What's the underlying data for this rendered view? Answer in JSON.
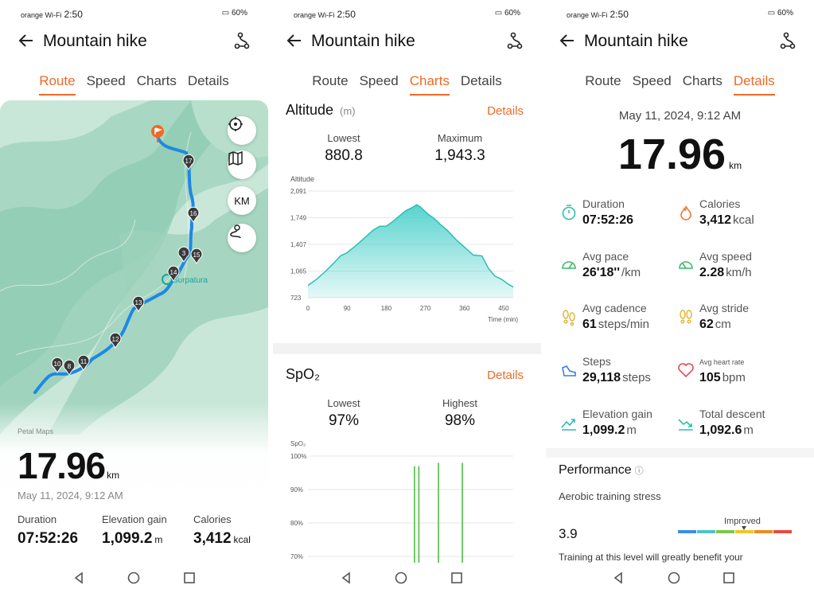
{
  "status": {
    "carrier": "orange Wi-Fi",
    "time": "2:50",
    "battery": "60%"
  },
  "header": {
    "title": "Mountain hike"
  },
  "tabs": [
    "Route",
    "Speed",
    "Charts",
    "Details"
  ],
  "route_panel": {
    "map_buttons": [
      "locate-icon",
      "map-layers-icon",
      "KM",
      "track-icon"
    ],
    "waypoints": [
      "17",
      "16",
      "3",
      "15",
      "14",
      "13",
      "12",
      "11",
      "10",
      "8"
    ],
    "place_label": "Surpatura",
    "map_provider": "Petal Maps",
    "distance": "17.96",
    "distance_unit": "km",
    "date": "May 11, 2024, 9:12 AM",
    "stats": [
      {
        "label": "Duration",
        "value": "07:52:26",
        "unit": ""
      },
      {
        "label": "Elevation gain",
        "value": "1,099.2",
        "unit": "m"
      },
      {
        "label": "Calories",
        "value": "3,412",
        "unit": "kcal"
      }
    ]
  },
  "charts_panel": {
    "altitude": {
      "title": "Altitude",
      "unit": "(m)",
      "details_label": "Details",
      "lowest_label": "Lowest",
      "lowest_value": "880.8",
      "max_label": "Maximum",
      "max_value": "1,943.3"
    },
    "spo2": {
      "title": "SpO₂",
      "details_label": "Details",
      "lowest_label": "Lowest",
      "lowest_value": "97%",
      "highest_label": "Highest",
      "highest_value": "98%"
    }
  },
  "chart_data": [
    {
      "type": "area",
      "ylabel": "Altitude",
      "xlabel": "Time (min)",
      "yticks": [
        "2,091",
        "1,749",
        "1,407",
        "1,065",
        "723"
      ],
      "ytick_values": [
        2091,
        1749,
        1407,
        1065,
        723
      ],
      "xticks": [
        "0",
        "90",
        "180",
        "270",
        "360",
        "450"
      ],
      "xtick_values": [
        0,
        90,
        180,
        270,
        360,
        450
      ],
      "ylim": [
        723,
        2091
      ],
      "xlim": [
        0,
        472
      ],
      "x": [
        0,
        20,
        40,
        60,
        75,
        90,
        110,
        130,
        150,
        165,
        180,
        195,
        210,
        225,
        240,
        250,
        260,
        275,
        290,
        305,
        320,
        340,
        360,
        380,
        400,
        415,
        430,
        445,
        460,
        472
      ],
      "y": [
        880,
        960,
        1060,
        1170,
        1260,
        1300,
        1390,
        1490,
        1590,
        1640,
        1640,
        1700,
        1770,
        1840,
        1880,
        1915,
        1880,
        1800,
        1740,
        1660,
        1590,
        1470,
        1370,
        1270,
        1260,
        1100,
        1000,
        960,
        900,
        860
      ],
      "fill": "#4fd1cc",
      "stroke": "#2cbdb7"
    },
    {
      "type": "bar",
      "ylabel": "SpO₂",
      "yticks": [
        "100%",
        "90%",
        "80%",
        "70%"
      ],
      "ytick_values": [
        100,
        90,
        80,
        70
      ],
      "ylim": [
        70,
        100
      ],
      "xlim": [
        0,
        472
      ],
      "x": [
        245,
        255,
        300,
        355
      ],
      "values": [
        97,
        97,
        98,
        98
      ],
      "color": "#4fbd4a"
    }
  ],
  "details_panel": {
    "date": "May 11, 2024, 9:12 AM",
    "distance": "17.96",
    "distance_unit": "km",
    "metrics": [
      {
        "label": "Duration",
        "value": "07:52:26",
        "unit": "",
        "icon": "timer-icon"
      },
      {
        "label": "Calories",
        "value": "3,412",
        "unit": "kcal",
        "icon": "flame-icon"
      },
      {
        "label": "Avg pace",
        "value": "26'18''",
        "unit": "/km",
        "icon": "pace-gauge-icon"
      },
      {
        "label": "Avg speed",
        "value": "2.28",
        "unit": "km/h",
        "icon": "speed-gauge-icon"
      },
      {
        "label": "Avg cadence",
        "value": "61",
        "unit": "steps/min",
        "icon": "footprints-icon"
      },
      {
        "label": "Avg stride",
        "value": "62",
        "unit": "cm",
        "icon": "stride-icon"
      },
      {
        "label": "Steps",
        "value": "29,118",
        "unit": "steps",
        "icon": "shoe-icon"
      },
      {
        "label": "Avg heart rate",
        "value": "105",
        "unit": "bpm",
        "icon": "heart-icon"
      },
      {
        "label": "Elevation gain",
        "value": "1,099.2",
        "unit": "m",
        "icon": "elevation-gain-icon"
      },
      {
        "label": "Total descent",
        "value": "1,092.6",
        "unit": "m",
        "icon": "descent-icon"
      }
    ],
    "performance_title": "Performance",
    "aerobic_label": "Aerobic training stress",
    "aerobic_value": "3.9",
    "aerobic_status": "Improved",
    "training_colors": [
      "#3a8ee6",
      "#4fc3c9",
      "#7cc84a",
      "#f2c32c",
      "#f08a24",
      "#e84a3c"
    ],
    "benefit_text": "Training at this level will greatly benefit your"
  },
  "colors": {
    "accent": "#ef6a25",
    "route": "#1e88e5",
    "map_bg": "#c9e7d9"
  }
}
